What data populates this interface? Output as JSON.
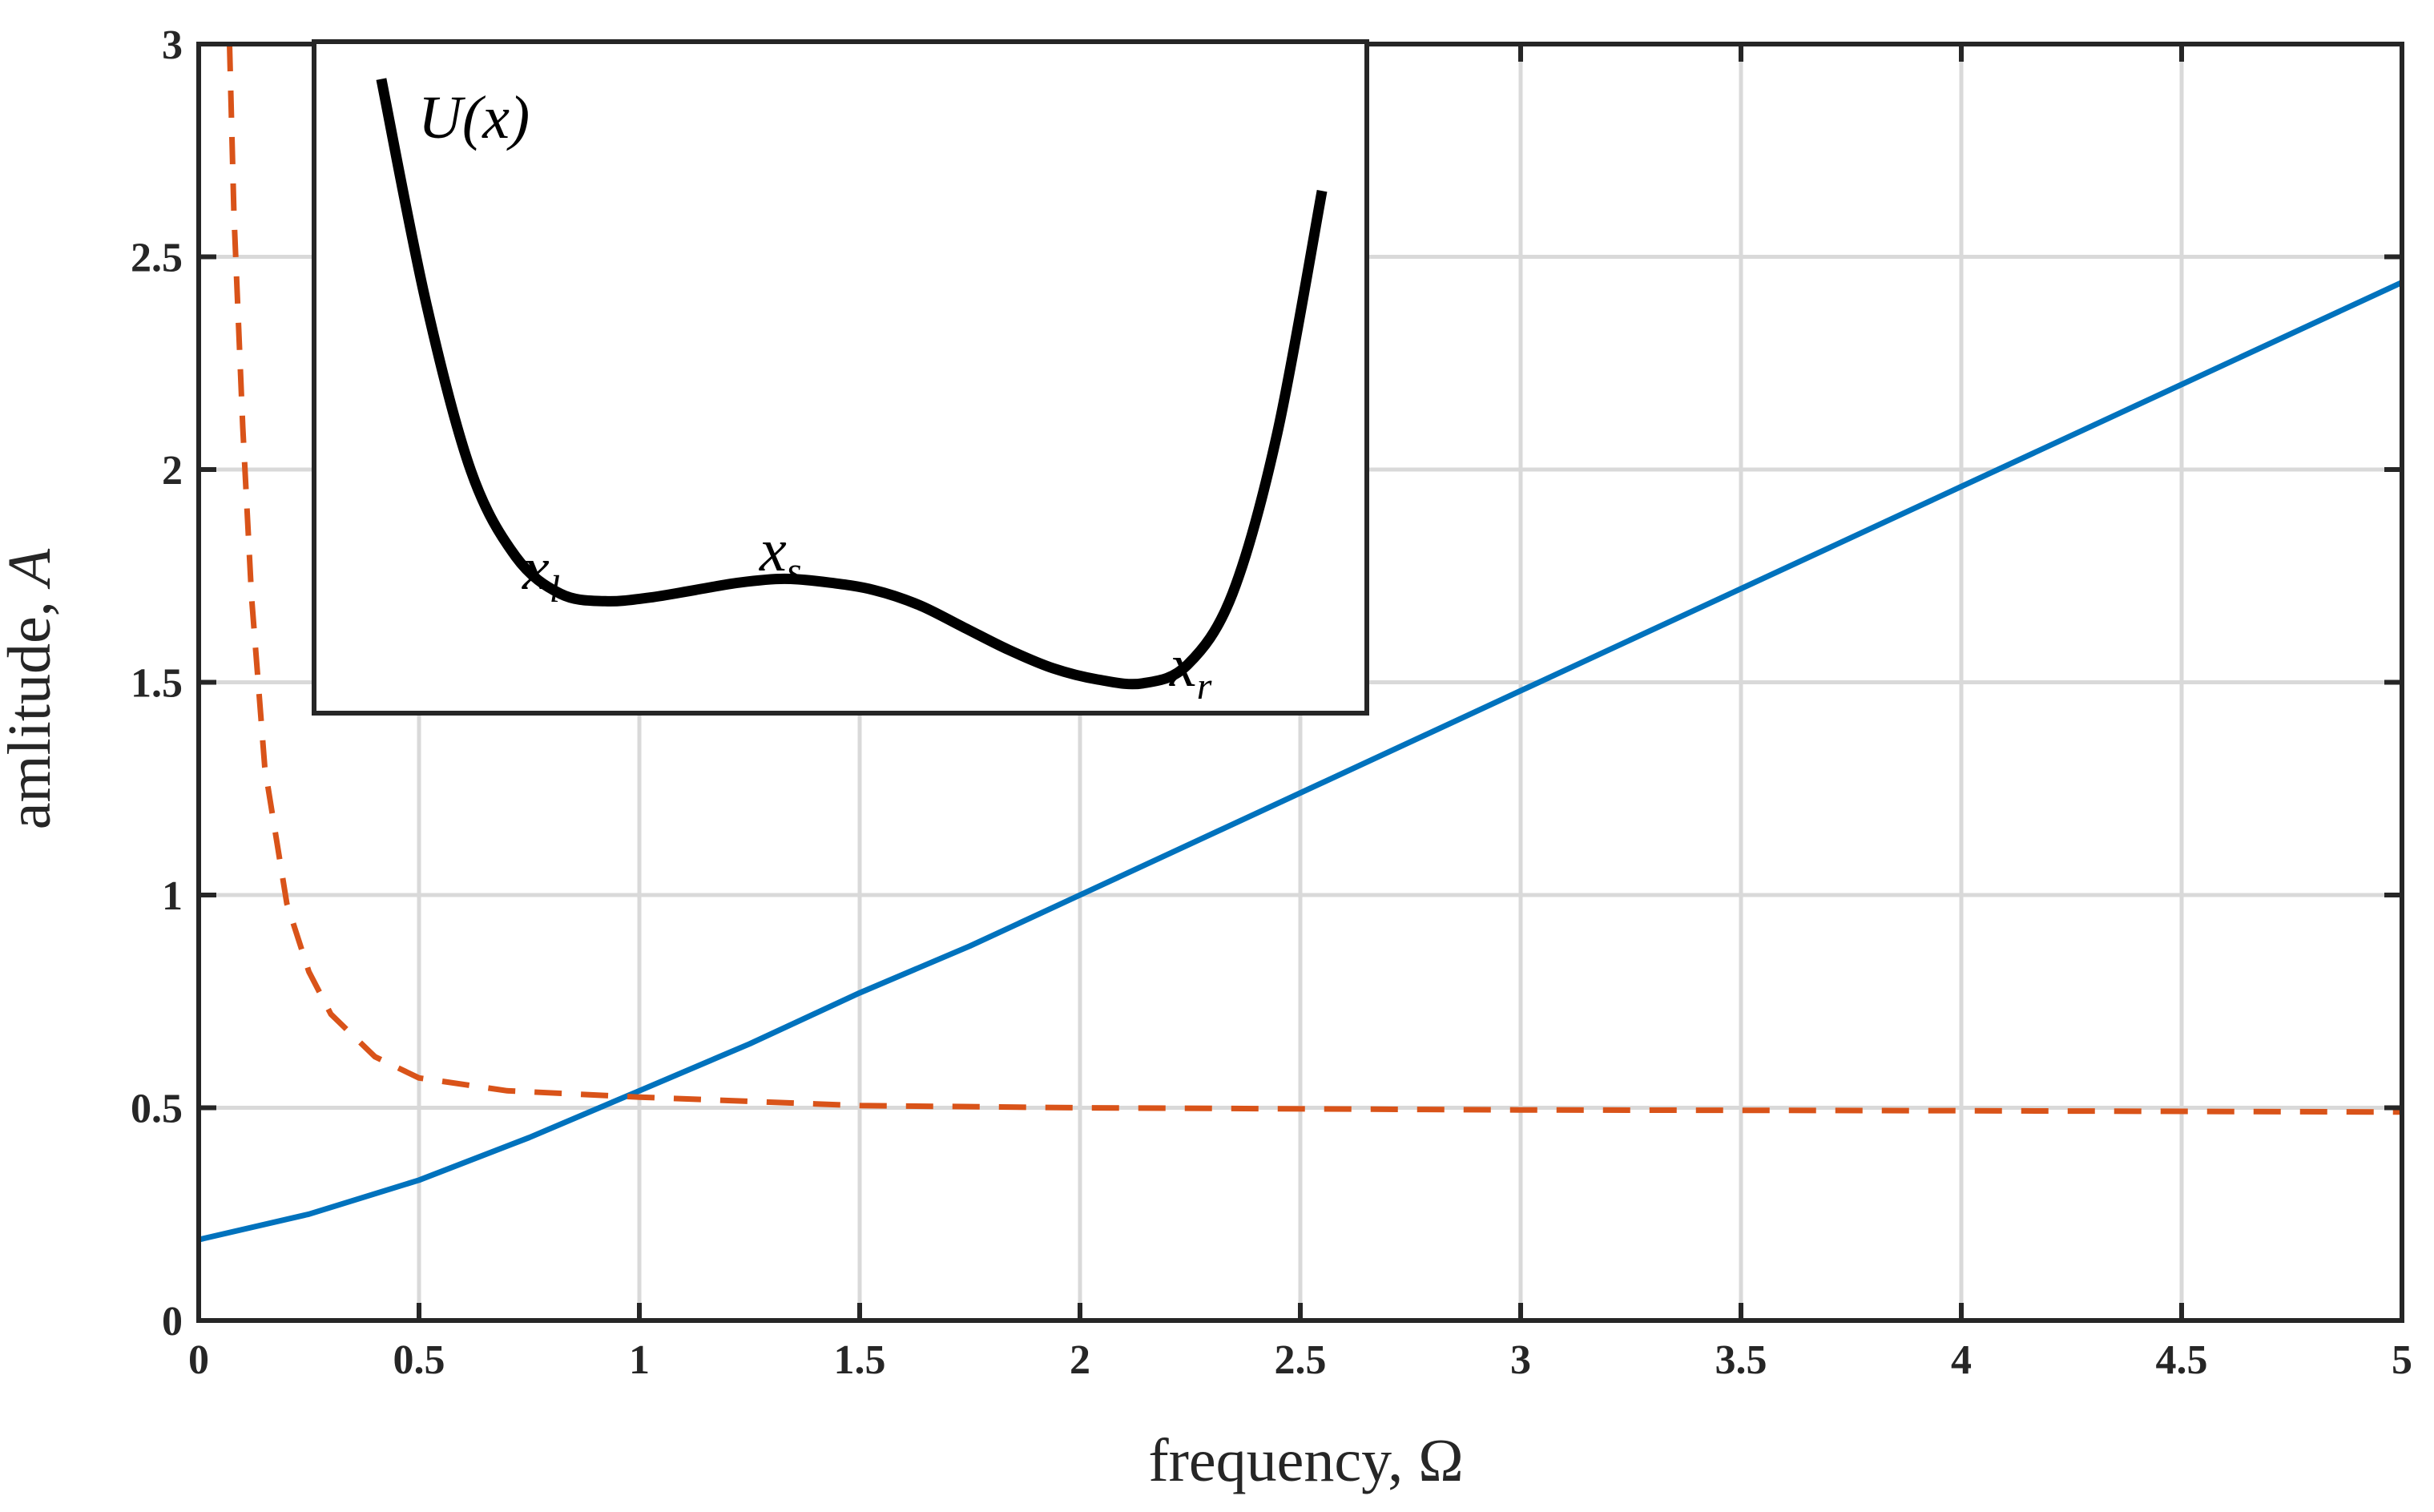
{
  "chart_data": {
    "type": "line",
    "xlabel_prefix": "frequency, ",
    "xlabel_symbol": "Ω",
    "ylabel_prefix": "amlitude, ",
    "ylabel_symbol": "A",
    "xlim": [
      0,
      5
    ],
    "ylim": [
      0,
      3
    ],
    "x_ticks": [
      "0",
      "0.5",
      "1",
      "1.5",
      "2",
      "2.5",
      "3",
      "3.5",
      "4",
      "4.5",
      "5"
    ],
    "y_ticks": [
      "0",
      "0.5",
      "1",
      "1.5",
      "2",
      "2.5",
      "3"
    ],
    "grid": true,
    "series": [
      {
        "name": "solid",
        "style": "solid",
        "color": "#0072BD",
        "points": [
          [
            0,
            0.19
          ],
          [
            0.25,
            0.25
          ],
          [
            0.5,
            0.33
          ],
          [
            0.75,
            0.43
          ],
          [
            1,
            0.54
          ],
          [
            1.25,
            0.65
          ],
          [
            1.5,
            0.77
          ],
          [
            1.75,
            0.88
          ],
          [
            2,
            1.0
          ],
          [
            2.5,
            1.24
          ],
          [
            3,
            1.48
          ],
          [
            3.5,
            1.72
          ],
          [
            4,
            1.96
          ],
          [
            4.5,
            2.2
          ],
          [
            5,
            2.44
          ]
        ]
      },
      {
        "name": "dashed",
        "style": "dashed",
        "color": "#D95319",
        "points": [
          [
            0.07,
            3.0
          ],
          [
            0.08,
            2.6
          ],
          [
            0.1,
            2.1
          ],
          [
            0.12,
            1.7
          ],
          [
            0.15,
            1.3
          ],
          [
            0.2,
            0.98
          ],
          [
            0.25,
            0.82
          ],
          [
            0.3,
            0.72
          ],
          [
            0.4,
            0.62
          ],
          [
            0.5,
            0.57
          ],
          [
            0.7,
            0.54
          ],
          [
            1.0,
            0.525
          ],
          [
            1.5,
            0.505
          ],
          [
            2.0,
            0.5
          ],
          [
            3.0,
            0.495
          ],
          [
            4.0,
            0.493
          ],
          [
            5.0,
            0.49
          ]
        ]
      }
    ],
    "inset": {
      "title": "U(x)",
      "curve_color": "#000000",
      "points": [
        [
          0.4,
          2.9
        ],
        [
          0.5,
          2.3
        ],
        [
          0.6,
          1.85
        ],
        [
          0.7,
          1.62
        ],
        [
          0.8,
          1.52
        ],
        [
          0.9,
          1.5
        ],
        [
          1.0,
          1.51
        ],
        [
          1.1,
          1.53
        ],
        [
          1.2,
          1.55
        ],
        [
          1.3,
          1.56
        ],
        [
          1.4,
          1.55
        ],
        [
          1.5,
          1.53
        ],
        [
          1.6,
          1.49
        ],
        [
          1.7,
          1.43
        ],
        [
          1.8,
          1.37
        ],
        [
          1.9,
          1.32
        ],
        [
          2.0,
          1.29
        ],
        [
          2.1,
          1.28
        ],
        [
          2.2,
          1.33
        ],
        [
          2.3,
          1.52
        ],
        [
          2.4,
          1.95
        ],
        [
          2.5,
          2.6
        ]
      ],
      "ylim": [
        1.2,
        3.0
      ],
      "xlim": [
        0.25,
        2.6
      ],
      "labels": [
        {
          "base": "x",
          "sub": "l"
        },
        {
          "base": "x",
          "sub": "s"
        },
        {
          "base": "x",
          "sub": "r"
        }
      ]
    }
  }
}
